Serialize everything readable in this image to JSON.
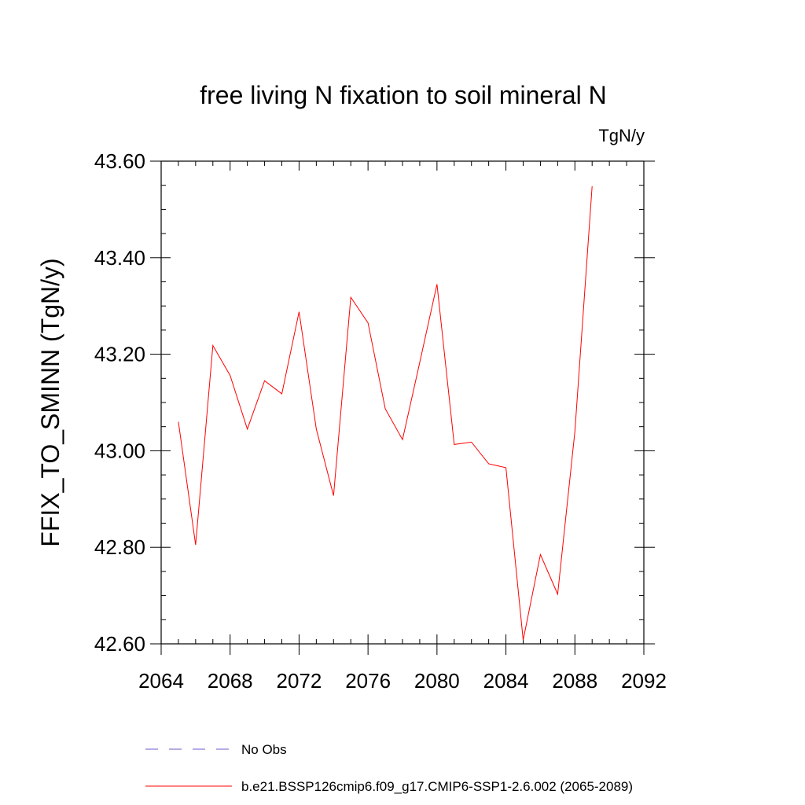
{
  "chart_data": {
    "type": "line",
    "title": "free living N fixation to soil mineral N",
    "units": "TgN/y",
    "xlabel": "",
    "ylabel": "FFIX_TO_SMINN  (TgN/y)",
    "xlim": [
      2064,
      2092
    ],
    "ylim": [
      42.6,
      43.6
    ],
    "x_major_ticks": [
      2064,
      2068,
      2072,
      2076,
      2080,
      2084,
      2088,
      2092
    ],
    "x_tick_labels": [
      "2064",
      "2068",
      "2072",
      "2076",
      "2080",
      "2084",
      "2088",
      "2092"
    ],
    "x_minor_step": 1,
    "y_major_ticks": [
      42.6,
      42.8,
      43.0,
      43.2,
      43.4,
      43.6
    ],
    "y_tick_labels": [
      "42.60",
      "42.80",
      "43.00",
      "43.20",
      "43.40",
      "43.60"
    ],
    "y_minor_step": 0.05,
    "grid": false,
    "series": [
      {
        "name": "b.e21.BSSP126cmip6.f09_g17.CMIP6-SSP1-2.6.002 (2065-2089)",
        "color": "#ff0000",
        "style": "solid",
        "x": [
          2065,
          2066,
          2067,
          2068,
          2069,
          2070,
          2071,
          2072,
          2073,
          2074,
          2075,
          2076,
          2077,
          2078,
          2079,
          2080,
          2081,
          2082,
          2083,
          2084,
          2085,
          2086,
          2087,
          2088,
          2089
        ],
        "values": [
          43.06,
          42.805,
          43.218,
          43.156,
          43.045,
          43.145,
          43.118,
          43.288,
          43.045,
          42.907,
          43.318,
          43.265,
          43.087,
          43.023,
          43.183,
          43.345,
          43.013,
          43.018,
          42.973,
          42.965,
          42.608,
          42.785,
          42.703,
          43.04,
          43.548
        ]
      }
    ],
    "legend": [
      {
        "label": "No Obs",
        "color": "#6a5acd",
        "style": "dashed"
      },
      {
        "label": "b.e21.BSSP126cmip6.f09_g17.CMIP6-SSP1-2.6.002 (2065-2089)",
        "color": "#ff0000",
        "style": "solid"
      }
    ],
    "legend_position": "bottom"
  }
}
